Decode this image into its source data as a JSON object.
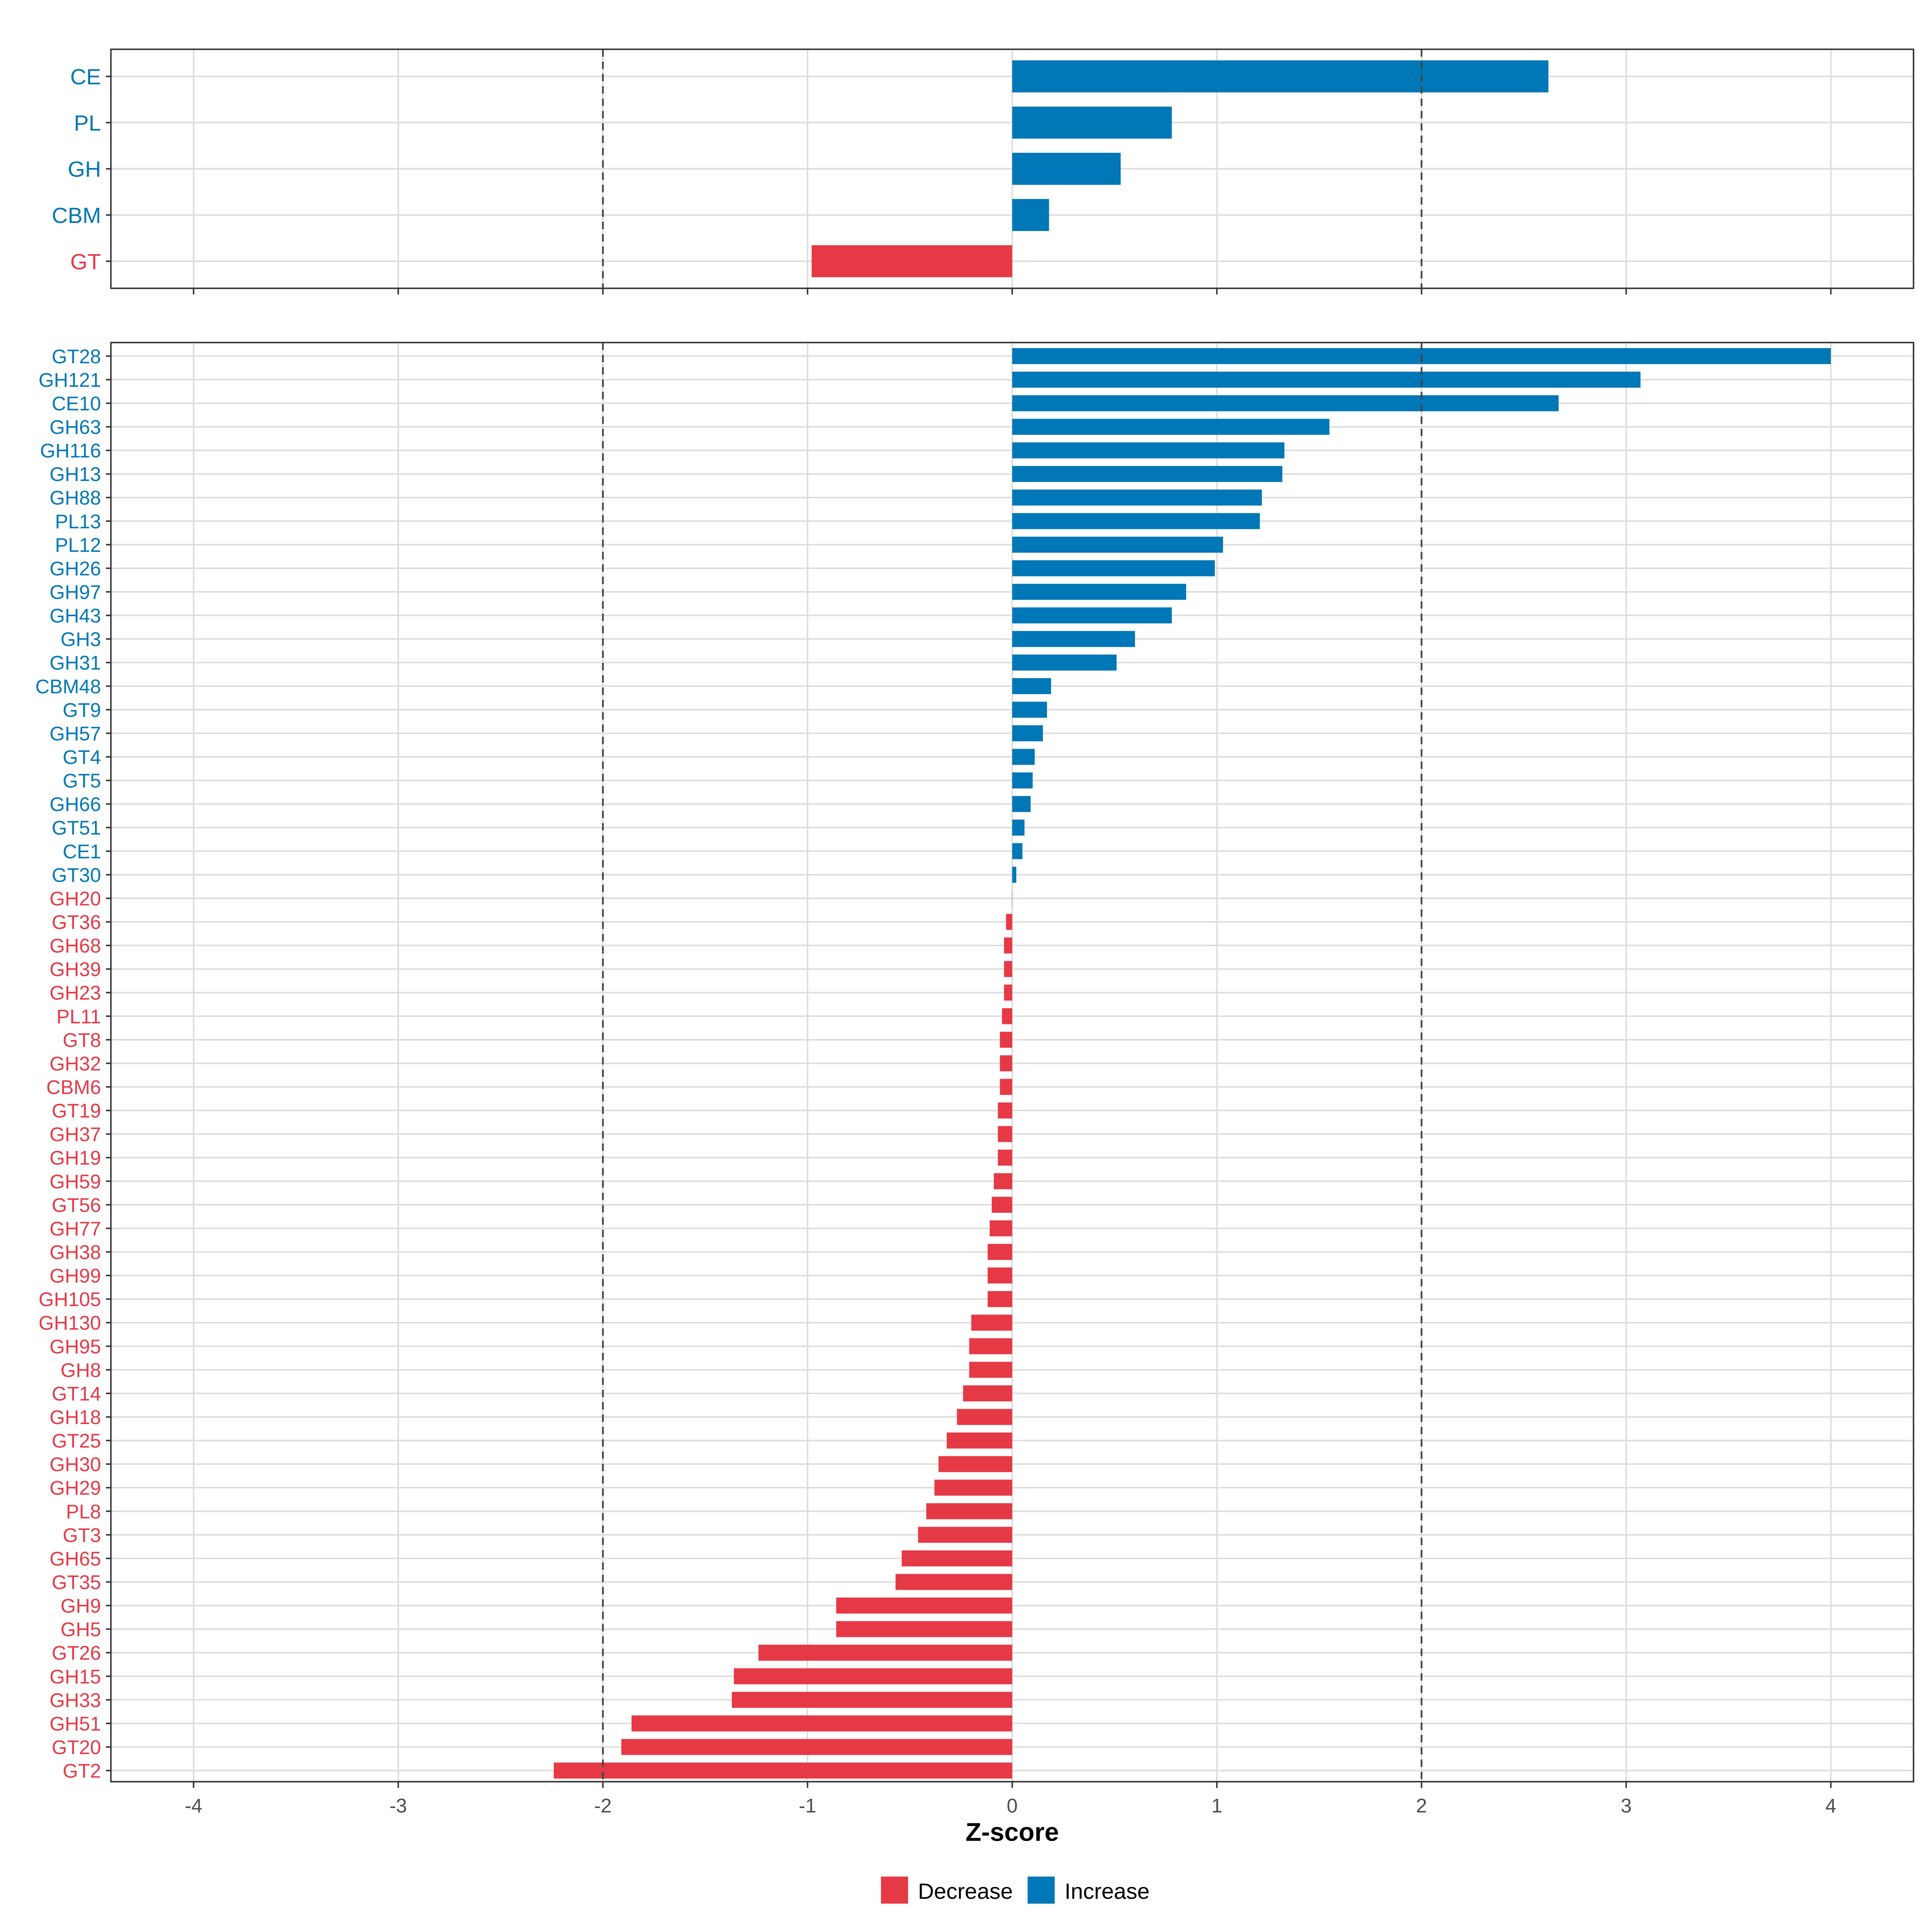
{
  "chart_data": [
    {
      "type": "bar",
      "orientation": "horizontal",
      "panel": "top",
      "categories": [
        "CE",
        "PL",
        "GH",
        "CBM",
        "GT"
      ],
      "values": [
        2.62,
        0.78,
        0.53,
        0.18,
        -0.98
      ],
      "xlim": [
        -4.4,
        4.4
      ],
      "xticks": [
        -4,
        -3,
        -2,
        -1,
        0,
        1,
        2,
        3,
        4
      ],
      "reference_lines": [
        -2,
        2
      ],
      "grid": true
    },
    {
      "type": "bar",
      "orientation": "horizontal",
      "panel": "bottom",
      "categories": [
        "GT28",
        "GH121",
        "CE10",
        "GH63",
        "GH116",
        "GH13",
        "GH88",
        "PL13",
        "PL12",
        "GH26",
        "GH97",
        "GH43",
        "GH3",
        "GH31",
        "CBM48",
        "GT9",
        "GH57",
        "GT4",
        "GT5",
        "GH66",
        "GT51",
        "CE1",
        "GT30",
        "GH20",
        "GT36",
        "GH68",
        "GH39",
        "GH23",
        "PL11",
        "GT8",
        "GH32",
        "CBM6",
        "GT19",
        "GH37",
        "GH19",
        "GH59",
        "GT56",
        "GH77",
        "GH38",
        "GH99",
        "GH105",
        "GH130",
        "GH95",
        "GH8",
        "GT14",
        "GH18",
        "GT25",
        "GH30",
        "GH29",
        "PL8",
        "GT3",
        "GH65",
        "GT35",
        "GH9",
        "GH5",
        "GT26",
        "GH15",
        "GH33",
        "GH51",
        "GT20",
        "GT2"
      ],
      "values": [
        4.0,
        3.07,
        2.67,
        1.55,
        1.33,
        1.32,
        1.22,
        1.21,
        1.03,
        0.99,
        0.85,
        0.78,
        0.6,
        0.51,
        0.19,
        0.17,
        0.15,
        0.11,
        0.1,
        0.09,
        0.06,
        0.05,
        0.02,
        -0.001,
        -0.03,
        -0.04,
        -0.04,
        -0.04,
        -0.05,
        -0.06,
        -0.06,
        -0.06,
        -0.07,
        -0.07,
        -0.07,
        -0.09,
        -0.1,
        -0.11,
        -0.12,
        -0.12,
        -0.12,
        -0.2,
        -0.21,
        -0.21,
        -0.24,
        -0.27,
        -0.32,
        -0.36,
        -0.38,
        -0.42,
        -0.46,
        -0.54,
        -0.57,
        -0.86,
        -0.86,
        -1.24,
        -1.36,
        -1.37,
        -1.86,
        -1.91,
        -2.24
      ],
      "xlim": [
        -4.4,
        4.4
      ],
      "xticks": [
        -4,
        -3,
        -2,
        -1,
        0,
        1,
        2,
        3,
        4
      ],
      "tick_labels": [
        "-4",
        "-3",
        "-2",
        "-1",
        "0",
        "1",
        "2",
        "3",
        "4"
      ],
      "reference_lines": [
        -2,
        2
      ],
      "grid": true
    }
  ],
  "xlabel": "Z-score",
  "legend": {
    "placement": "bottom",
    "entries": [
      {
        "label": "Decrease",
        "color": "#E63946"
      },
      {
        "label": "Increase",
        "color": "#0077B6"
      }
    ]
  },
  "colors": {
    "increase": "#0077B6",
    "decrease": "#E63946"
  }
}
